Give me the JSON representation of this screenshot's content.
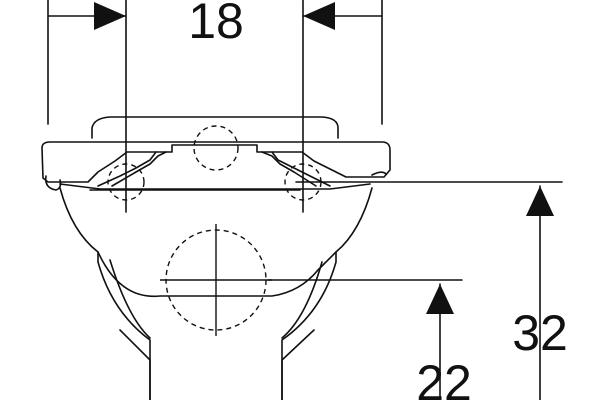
{
  "dimensions": {
    "top_width": "18",
    "rim_height": "32",
    "outlet_height": "22"
  },
  "colors": {
    "line": "#111111",
    "background": "#ffffff"
  }
}
